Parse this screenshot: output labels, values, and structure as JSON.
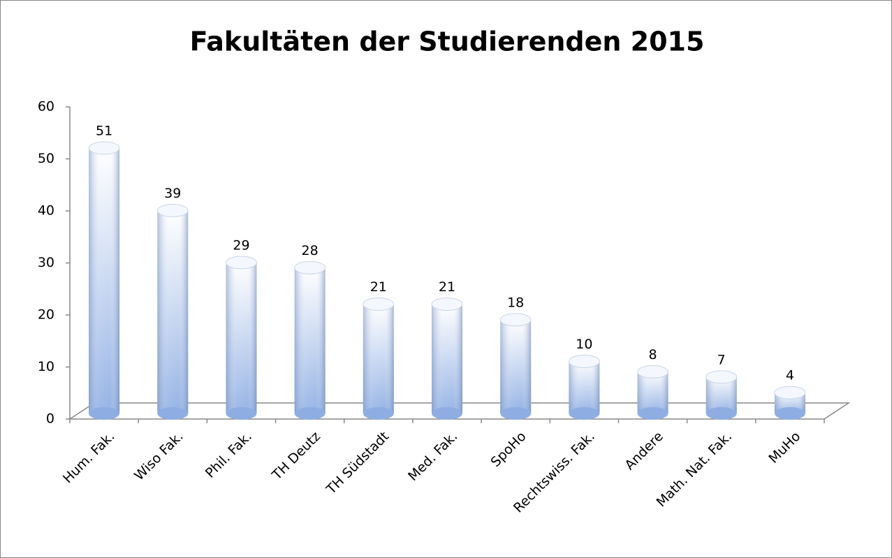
{
  "chart_data": {
    "type": "bar",
    "title": "Fakultäten der Studierenden 2015",
    "categories": [
      "Hum. Fak.",
      "Wiso Fak.",
      "Phil. Fak.",
      "TH Deutz",
      "TH Südstadt",
      "Med. Fak.",
      "SpoHo",
      "Rechtswiss. Fak.",
      "Andere",
      "Math. Nat. Fak.",
      "MuHo"
    ],
    "values": [
      51,
      39,
      29,
      28,
      21,
      21,
      18,
      10,
      8,
      7,
      4
    ],
    "color": "#8eaee3",
    "ylim": [
      0,
      60
    ],
    "yticks": [
      0,
      10,
      20,
      30,
      40,
      50,
      60
    ],
    "grid": false
  }
}
